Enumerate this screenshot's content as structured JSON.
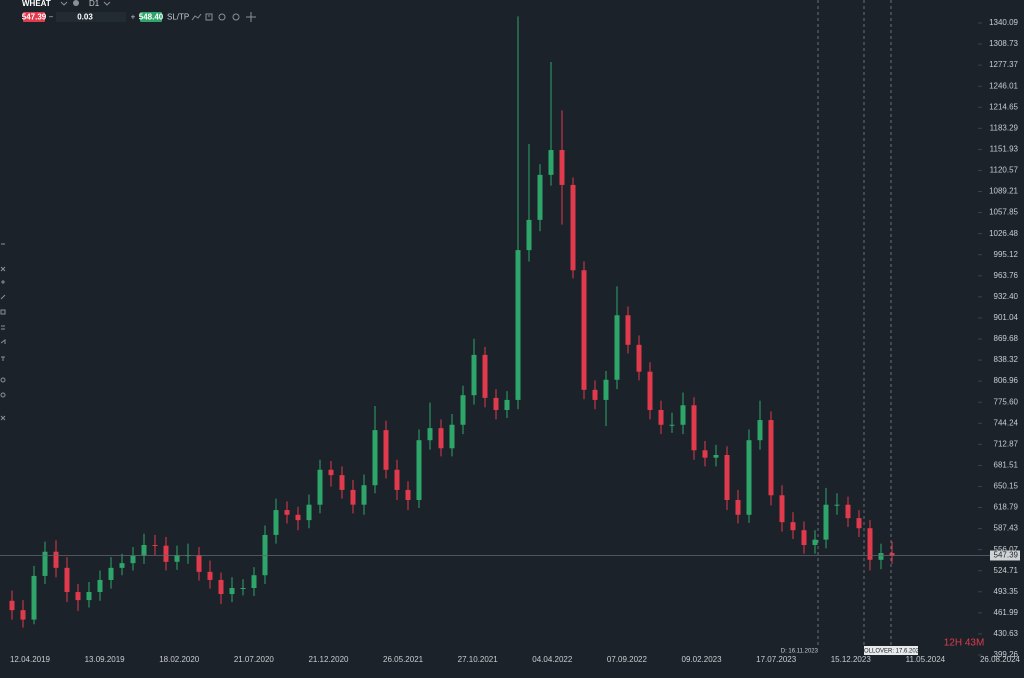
{
  "toolbar": {
    "symbol": "WHEAT",
    "timeframe": "D1",
    "sell_price": "547.39",
    "volume": "0.03",
    "buy_price": "548.40",
    "sltp": "SL/TP"
  },
  "countdown": "12H 43M",
  "chart_data": {
    "type": "candlestick",
    "xticks": [
      "12.04.2019",
      "13.09.2019",
      "18.02.2020",
      "21.07.2020",
      "21.12.2020",
      "26.05.2021",
      "27.10.2021",
      "04.04.2022",
      "07.09.2022",
      "09.02.2023",
      "17.07.2023",
      "15.12.2023",
      "11.05.2024",
      "26.08.2024"
    ],
    "ylim": [
      399.26,
      1350.5
    ],
    "yticks": [
      1340.09,
      1308.73,
      1277.37,
      1246.01,
      1214.65,
      1183.29,
      1151.93,
      1120.57,
      1089.21,
      1057.85,
      1026.48,
      995.12,
      963.76,
      {
        "value": 932.4,
        "label": "932.40"
      },
      901.04,
      869.68,
      838.32,
      806.96,
      {
        "value": 775.6,
        "label": "775.60"
      },
      744.24,
      712.87,
      681.51,
      650.15,
      618.79,
      587.43,
      556.07,
      524.71,
      493.35,
      461.99,
      430.63,
      399.26
    ],
    "grid": false,
    "up_color": "#2ea66a",
    "down_color": "#e03a4c",
    "price_line_color": "#5f686e",
    "last_price": 547.39,
    "markers": [
      "D: 16.11.2023",
      "ROLLOVER: 17.6.2024"
    ],
    "open": [
      480,
      466,
      452,
      517,
      553,
      529,
      493,
      481,
      493,
      511,
      529,
      536,
      547,
      563,
      562,
      538,
      548,
      548,
      523,
      511,
      490,
      499,
      499,
      518,
      578,
      615,
      608,
      600,
      623,
      675,
      667,
      645,
      623,
      652,
      734,
      675,
      645,
      630,
      719,
      737,
      707,
      742,
      786,
      846,
      782,
      764,
      779,
      1002,
      1047,
      1114,
      1151,
      1099,
      972,
      794,
      779,
      809,
      905,
      861,
      821,
      764,
      742,
      742,
      771,
      704,
      693,
      697,
      630,
      608,
      719,
      749,
      637,
      597,
      585,
      563,
      571,
      623,
      623,
      603,
      588,
      541,
      551
    ],
    "high": [
      495,
      481,
      532,
      568,
      570,
      545,
      505,
      508,
      525,
      545,
      550,
      560,
      580,
      578,
      575,
      562,
      565,
      560,
      540,
      522,
      515,
      512,
      530,
      592,
      632,
      628,
      620,
      638,
      690,
      688,
      680,
      660,
      668,
      770,
      748,
      690,
      658,
      735,
      775,
      750,
      758,
      800,
      870,
      858,
      795,
      792,
      1350,
      1160,
      1130,
      1282,
      1210,
      1110,
      985,
      808,
      822,
      948,
      918,
      875,
      835,
      778,
      760,
      790,
      783,
      718,
      712,
      710,
      645,
      735,
      778,
      762,
      652,
      612,
      598,
      585,
      648,
      640,
      635,
      615,
      600,
      565,
      568
    ],
    "low": [
      452,
      440,
      445,
      505,
      515,
      478,
      465,
      470,
      480,
      498,
      518,
      525,
      535,
      548,
      525,
      526,
      535,
      510,
      498,
      475,
      478,
      488,
      487,
      505,
      565,
      595,
      585,
      588,
      610,
      650,
      632,
      610,
      608,
      640,
      662,
      630,
      615,
      618,
      705,
      695,
      695,
      728,
      772,
      768,
      750,
      752,
      765,
      985,
      1030,
      1098,
      1040,
      960,
      780,
      765,
      740,
      795,
      848,
      808,
      750,
      728,
      730,
      728,
      690,
      680,
      680,
      615,
      595,
      596,
      705,
      622,
      583,
      572,
      550,
      550,
      558,
      608,
      590,
      575,
      525,
      527,
      535
    ],
    "close": [
      466,
      452,
      517,
      553,
      529,
      493,
      481,
      493,
      511,
      529,
      536,
      547,
      563,
      562,
      538,
      548,
      548,
      523,
      511,
      490,
      499,
      499,
      518,
      578,
      615,
      608,
      600,
      623,
      675,
      667,
      645,
      623,
      652,
      734,
      675,
      645,
      630,
      719,
      737,
      707,
      742,
      786,
      846,
      782,
      764,
      779,
      1002,
      1047,
      1114,
      1151,
      1099,
      972,
      794,
      779,
      809,
      905,
      861,
      821,
      764,
      742,
      742,
      771,
      704,
      693,
      697,
      630,
      608,
      719,
      749,
      637,
      597,
      585,
      563,
      571,
      623,
      623,
      603,
      588,
      541,
      551,
      547
    ]
  }
}
